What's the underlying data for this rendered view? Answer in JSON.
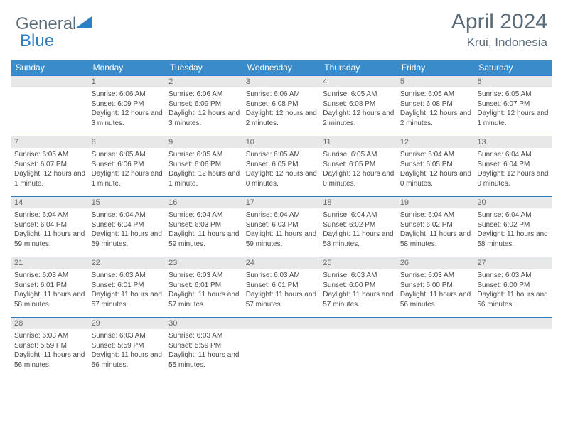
{
  "brand": {
    "word1": "General",
    "word2": "Blue",
    "color_general": "#5a6b7a",
    "color_blue": "#2f7fc3"
  },
  "title": {
    "month": "April 2024",
    "location": "Krui, Indonesia"
  },
  "style": {
    "header_bg": "#3a8bc9",
    "header_fg": "#ffffff",
    "daynum_bg": "#e8e8e8",
    "daynum_border": "#2f7fc3",
    "body_fontsize": 10,
    "th_fontsize": 12
  },
  "weekdays": [
    "Sunday",
    "Monday",
    "Tuesday",
    "Wednesday",
    "Thursday",
    "Friday",
    "Saturday"
  ],
  "first_weekday_index": 1,
  "days": [
    {
      "n": 1,
      "sunrise": "6:06 AM",
      "sunset": "6:09 PM",
      "daylight": "12 hours and 3 minutes."
    },
    {
      "n": 2,
      "sunrise": "6:06 AM",
      "sunset": "6:09 PM",
      "daylight": "12 hours and 3 minutes."
    },
    {
      "n": 3,
      "sunrise": "6:06 AM",
      "sunset": "6:08 PM",
      "daylight": "12 hours and 2 minutes."
    },
    {
      "n": 4,
      "sunrise": "6:05 AM",
      "sunset": "6:08 PM",
      "daylight": "12 hours and 2 minutes."
    },
    {
      "n": 5,
      "sunrise": "6:05 AM",
      "sunset": "6:08 PM",
      "daylight": "12 hours and 2 minutes."
    },
    {
      "n": 6,
      "sunrise": "6:05 AM",
      "sunset": "6:07 PM",
      "daylight": "12 hours and 1 minute."
    },
    {
      "n": 7,
      "sunrise": "6:05 AM",
      "sunset": "6:07 PM",
      "daylight": "12 hours and 1 minute."
    },
    {
      "n": 8,
      "sunrise": "6:05 AM",
      "sunset": "6:06 PM",
      "daylight": "12 hours and 1 minute."
    },
    {
      "n": 9,
      "sunrise": "6:05 AM",
      "sunset": "6:06 PM",
      "daylight": "12 hours and 1 minute."
    },
    {
      "n": 10,
      "sunrise": "6:05 AM",
      "sunset": "6:05 PM",
      "daylight": "12 hours and 0 minutes."
    },
    {
      "n": 11,
      "sunrise": "6:05 AM",
      "sunset": "6:05 PM",
      "daylight": "12 hours and 0 minutes."
    },
    {
      "n": 12,
      "sunrise": "6:04 AM",
      "sunset": "6:05 PM",
      "daylight": "12 hours and 0 minutes."
    },
    {
      "n": 13,
      "sunrise": "6:04 AM",
      "sunset": "6:04 PM",
      "daylight": "12 hours and 0 minutes."
    },
    {
      "n": 14,
      "sunrise": "6:04 AM",
      "sunset": "6:04 PM",
      "daylight": "11 hours and 59 minutes."
    },
    {
      "n": 15,
      "sunrise": "6:04 AM",
      "sunset": "6:04 PM",
      "daylight": "11 hours and 59 minutes."
    },
    {
      "n": 16,
      "sunrise": "6:04 AM",
      "sunset": "6:03 PM",
      "daylight": "11 hours and 59 minutes."
    },
    {
      "n": 17,
      "sunrise": "6:04 AM",
      "sunset": "6:03 PM",
      "daylight": "11 hours and 59 minutes."
    },
    {
      "n": 18,
      "sunrise": "6:04 AM",
      "sunset": "6:02 PM",
      "daylight": "11 hours and 58 minutes."
    },
    {
      "n": 19,
      "sunrise": "6:04 AM",
      "sunset": "6:02 PM",
      "daylight": "11 hours and 58 minutes."
    },
    {
      "n": 20,
      "sunrise": "6:04 AM",
      "sunset": "6:02 PM",
      "daylight": "11 hours and 58 minutes."
    },
    {
      "n": 21,
      "sunrise": "6:03 AM",
      "sunset": "6:01 PM",
      "daylight": "11 hours and 58 minutes."
    },
    {
      "n": 22,
      "sunrise": "6:03 AM",
      "sunset": "6:01 PM",
      "daylight": "11 hours and 57 minutes."
    },
    {
      "n": 23,
      "sunrise": "6:03 AM",
      "sunset": "6:01 PM",
      "daylight": "11 hours and 57 minutes."
    },
    {
      "n": 24,
      "sunrise": "6:03 AM",
      "sunset": "6:01 PM",
      "daylight": "11 hours and 57 minutes."
    },
    {
      "n": 25,
      "sunrise": "6:03 AM",
      "sunset": "6:00 PM",
      "daylight": "11 hours and 57 minutes."
    },
    {
      "n": 26,
      "sunrise": "6:03 AM",
      "sunset": "6:00 PM",
      "daylight": "11 hours and 56 minutes."
    },
    {
      "n": 27,
      "sunrise": "6:03 AM",
      "sunset": "6:00 PM",
      "daylight": "11 hours and 56 minutes."
    },
    {
      "n": 28,
      "sunrise": "6:03 AM",
      "sunset": "5:59 PM",
      "daylight": "11 hours and 56 minutes."
    },
    {
      "n": 29,
      "sunrise": "6:03 AM",
      "sunset": "5:59 PM",
      "daylight": "11 hours and 56 minutes."
    },
    {
      "n": 30,
      "sunrise": "6:03 AM",
      "sunset": "5:59 PM",
      "daylight": "11 hours and 55 minutes."
    }
  ],
  "labels": {
    "sunrise": "Sunrise:",
    "sunset": "Sunset:",
    "daylight": "Daylight:"
  }
}
